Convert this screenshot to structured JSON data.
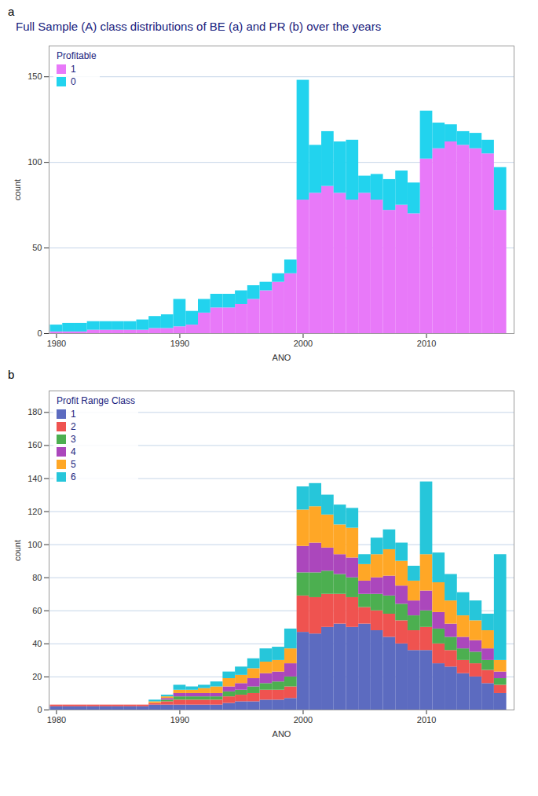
{
  "title": "Full Sample (A) class distributions of BE (a) and PR (b) over the years",
  "chart_data": [
    {
      "type": "bar",
      "stacked": true,
      "title": "a",
      "x": [
        1980,
        1981,
        1982,
        1983,
        1984,
        1985,
        1986,
        1987,
        1988,
        1989,
        1990,
        1991,
        1992,
        1993,
        1994,
        1995,
        1996,
        1997,
        1998,
        1999,
        2000,
        2001,
        2002,
        2003,
        2004,
        2005,
        2006,
        2007,
        2008,
        2009,
        2010,
        2011,
        2012,
        2013,
        2014,
        2015,
        2016
      ],
      "series": [
        {
          "name": "1",
          "color": "#e879f9",
          "values": [
            1,
            1,
            1,
            2,
            2,
            2,
            2,
            2,
            3,
            3,
            4,
            5,
            12,
            15,
            15,
            17,
            20,
            25,
            30,
            35,
            78,
            82,
            86,
            82,
            78,
            82,
            78,
            72,
            75,
            70,
            102,
            108,
            112,
            110,
            108,
            105,
            72
          ]
        },
        {
          "name": "0",
          "color": "#22d3ee",
          "values": [
            4,
            5,
            5,
            5,
            5,
            5,
            5,
            6,
            7,
            8,
            16,
            8,
            8,
            8,
            8,
            8,
            8,
            5,
            5,
            8,
            70,
            28,
            32,
            30,
            35,
            10,
            15,
            18,
            20,
            18,
            28,
            15,
            10,
            8,
            9,
            8,
            25
          ]
        }
      ],
      "legend_title": "Profitable",
      "legend": "upper left",
      "xlabel": "ANO",
      "ylabel": "count",
      "xlim": [
        1979.4,
        2017.1
      ],
      "xticks": [
        1980,
        1990,
        2000,
        2010
      ],
      "ylim": [
        0,
        168
      ],
      "yticks": [
        0,
        50,
        100,
        150
      ],
      "grid": true
    },
    {
      "type": "bar",
      "stacked": true,
      "title": "b",
      "x": [
        1980,
        1981,
        1982,
        1983,
        1984,
        1985,
        1986,
        1987,
        1988,
        1989,
        1990,
        1991,
        1992,
        1993,
        1994,
        1995,
        1996,
        1997,
        1998,
        1999,
        2000,
        2001,
        2002,
        2003,
        2004,
        2005,
        2006,
        2007,
        2008,
        2009,
        2010,
        2011,
        2012,
        2013,
        2014,
        2015,
        2016
      ],
      "series": [
        {
          "name": "1",
          "color": "#5c6bc0",
          "values": [
            2,
            2,
            2,
            2,
            2,
            2,
            2,
            2,
            3,
            3,
            3,
            3,
            3,
            3,
            4,
            5,
            5,
            6,
            6,
            7,
            47,
            46,
            50,
            52,
            50,
            52,
            48,
            44,
            40,
            36,
            36,
            28,
            26,
            22,
            20,
            16,
            10
          ]
        },
        {
          "name": "2",
          "color": "#ef5350",
          "values": [
            1,
            1,
            1,
            1,
            1,
            1,
            1,
            1,
            1,
            2,
            3,
            3,
            3,
            3,
            4,
            4,
            5,
            6,
            6,
            7,
            22,
            22,
            20,
            18,
            18,
            10,
            12,
            14,
            14,
            12,
            14,
            12,
            10,
            8,
            8,
            8,
            5
          ]
        },
        {
          "name": "3",
          "color": "#4caf50",
          "values": [
            0,
            0,
            0,
            0,
            0,
            0,
            0,
            0,
            0,
            1,
            2,
            2,
            2,
            2,
            3,
            3,
            4,
            4,
            5,
            6,
            14,
            15,
            14,
            12,
            12,
            8,
            10,
            11,
            10,
            9,
            10,
            9,
            8,
            7,
            7,
            6,
            4
          ]
        },
        {
          "name": "4",
          "color": "#ab47bc",
          "values": [
            0,
            0,
            0,
            0,
            0,
            0,
            0,
            0,
            0,
            1,
            2,
            2,
            2,
            2,
            3,
            4,
            5,
            6,
            6,
            8,
            16,
            18,
            14,
            12,
            12,
            8,
            10,
            12,
            11,
            9,
            12,
            10,
            8,
            7,
            7,
            7,
            4
          ]
        },
        {
          "name": "5",
          "color": "#ffa726",
          "values": [
            0,
            0,
            0,
            0,
            0,
            0,
            0,
            0,
            1,
            1,
            2,
            2,
            3,
            4,
            5,
            5,
            6,
            7,
            7,
            9,
            22,
            22,
            20,
            18,
            18,
            10,
            14,
            16,
            15,
            12,
            22,
            18,
            14,
            13,
            12,
            11,
            7
          ]
        },
        {
          "name": "6",
          "color": "#26c6da",
          "values": [
            0,
            0,
            0,
            0,
            0,
            0,
            0,
            0,
            1,
            1,
            3,
            2,
            2,
            3,
            4,
            5,
            6,
            8,
            8,
            12,
            14,
            14,
            12,
            12,
            12,
            6,
            10,
            12,
            11,
            9,
            44,
            18,
            16,
            14,
            12,
            10,
            64
          ]
        }
      ],
      "legend_title": "Profit Range Class",
      "legend": "upper left",
      "xlabel": "ANO",
      "ylabel": "count",
      "xlim": [
        1979.4,
        2017.1
      ],
      "xticks": [
        1980,
        1990,
        2000,
        2010
      ],
      "ylim": [
        0,
        193
      ],
      "yticks": [
        0,
        20,
        40,
        60,
        80,
        100,
        120,
        140,
        160,
        180
      ],
      "grid": true
    }
  ]
}
